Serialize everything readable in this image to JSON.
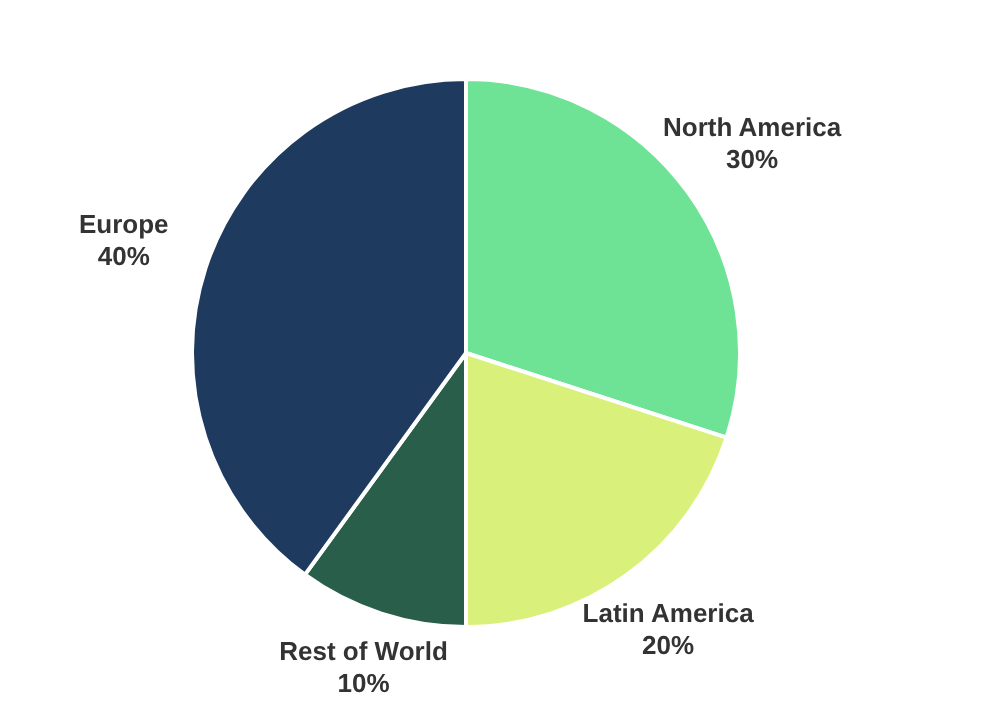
{
  "chart_data": {
    "type": "pie",
    "categories": [
      "North America",
      "Latin America",
      "Rest of World",
      "Europe"
    ],
    "values": [
      30,
      20,
      10,
      40
    ],
    "value_labels": [
      "30%",
      "20%",
      "10%",
      "40%"
    ],
    "colors": [
      "#6ee396",
      "#d9f07a",
      "#285e4a",
      "#1f3a5f"
    ],
    "legend": false
  }
}
